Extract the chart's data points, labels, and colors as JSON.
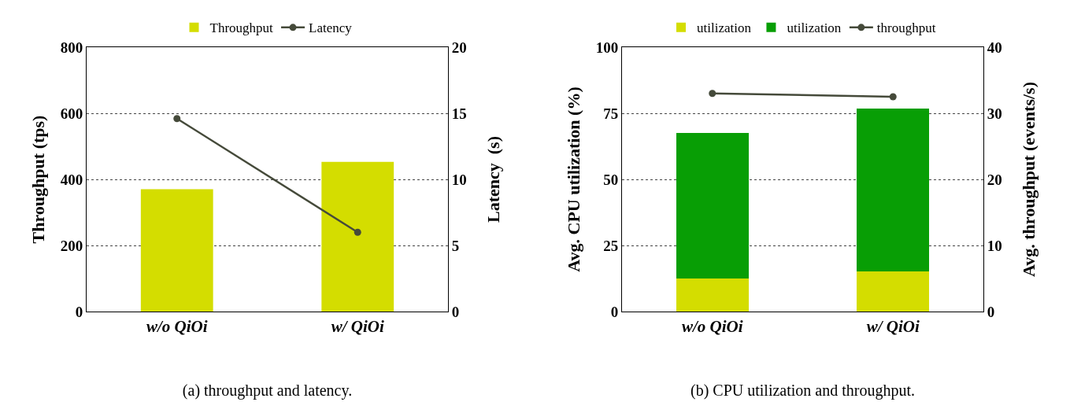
{
  "chart_data": [
    {
      "type": "bar",
      "title": "(a) throughput and latency.",
      "ylabel": "Throughput (tps)",
      "y2label": "Latency  (s)",
      "categories": [
        "w/o QiOi",
        "w/ QiOi"
      ],
      "series": [
        {
          "name": "Throughput",
          "color": "#d4dd00",
          "values": [
            370,
            453
          ]
        },
        {
          "name": "Latency",
          "type": "line",
          "axis": "y2",
          "color": "#454a3a",
          "values": [
            14.6,
            6.0
          ]
        }
      ],
      "ylim": [
        0,
        800
      ],
      "yticks": [
        0,
        200,
        400,
        600,
        800
      ],
      "y2lim": [
        0,
        20
      ],
      "y2ticks": [
        0,
        5,
        10,
        15,
        20
      ],
      "grid": "y",
      "legend": "top",
      "marker": "circle"
    },
    {
      "type": "bar",
      "title": "(b) CPU utilization and throughput.",
      "ylabel": "Avg. CPU utilization (%)",
      "y2label": "Avg. throughput (events/s)",
      "categories": [
        "w/o QiOi",
        "w/ QiOi"
      ],
      "stacked": true,
      "series": [
        {
          "name": "utilization",
          "color": "#d4dd00",
          "values": [
            12.4,
            15.1
          ]
        },
        {
          "name": "utilization",
          "color": "#089e05",
          "values": [
            55.3,
            61.6
          ]
        },
        {
          "name": "throughput",
          "type": "line",
          "axis": "y2",
          "color": "#454a3a",
          "values": [
            33.0,
            32.5
          ]
        }
      ],
      "ylim": [
        0,
        100
      ],
      "yticks": [
        0,
        25,
        50,
        75,
        100
      ],
      "y2lim": [
        0,
        40
      ],
      "y2ticks": [
        0,
        10,
        20,
        30,
        40
      ],
      "grid": "y",
      "legend": "top",
      "marker": "circle"
    }
  ]
}
